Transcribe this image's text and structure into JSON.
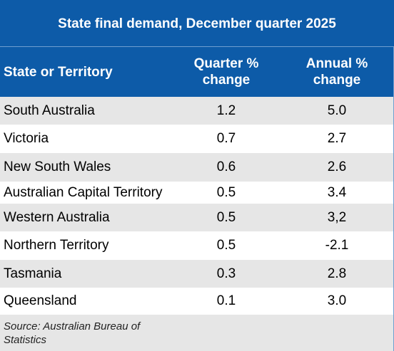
{
  "title": "State final demand, December quarter 2025",
  "headers": {
    "name": "State or Territory",
    "quarter_line1": "Quarter %",
    "quarter_line2": "change",
    "annual_line1": "Annual %",
    "annual_line2": "change"
  },
  "rows": [
    {
      "name": "South Australia",
      "quarter": "1.2",
      "annual": "5.0"
    },
    {
      "name": "Victoria",
      "quarter": "0.7",
      "annual": "2.7"
    },
    {
      "name": "New South Wales",
      "quarter": "0.6",
      "annual": "2.6"
    },
    {
      "name": "Australian Capital Territory",
      "quarter": "0.5",
      "annual": "3.4"
    },
    {
      "name": "Western Australia",
      "quarter": "0.5",
      "annual": "3,2"
    },
    {
      "name": "Northern Territory",
      "quarter": "0.5",
      "annual": "-2.1"
    },
    {
      "name": "Tasmania",
      "quarter": "0.3",
      "annual": "2.8"
    },
    {
      "name": "Queensland",
      "quarter": "0.1",
      "annual": "3.0"
    }
  ],
  "source": "Source: Australian Bureau of Statistics",
  "colors": {
    "header_bg": "#0d5ba8",
    "shaded_row": "#e6e6e6"
  }
}
